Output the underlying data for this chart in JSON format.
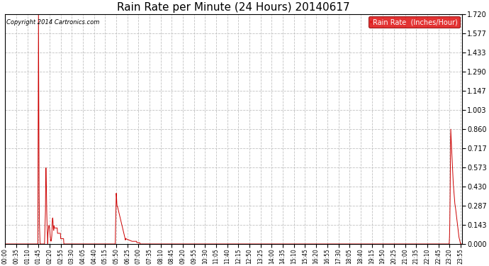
{
  "title": "Rain Rate per Minute (24 Hours) 20140617",
  "ylabel": "Rain Rate  (Inches/Hour)",
  "copyright": "Copyright 2014 Cartronics.com",
  "ylim": [
    0.0,
    1.72
  ],
  "yticks": [
    0.0,
    0.143,
    0.287,
    0.43,
    0.573,
    0.717,
    0.86,
    1.003,
    1.147,
    1.29,
    1.433,
    1.577,
    1.72
  ],
  "line_color": "#cc0000",
  "bg_color": "#ffffff",
  "plot_bg": "#f5f5f5",
  "grid_color": "#bbbbbb",
  "title_fontsize": 11,
  "legend_bg": "#dd0000",
  "legend_text_color": "#ffffff",
  "xtick_labels": [
    "00:00",
    "00:35",
    "01:10",
    "01:45",
    "02:20",
    "02:55",
    "03:30",
    "04:05",
    "04:40",
    "05:15",
    "05:50",
    "06:25",
    "07:00",
    "07:35",
    "08:10",
    "08:45",
    "09:20",
    "09:55",
    "10:30",
    "11:05",
    "11:40",
    "12:15",
    "12:50",
    "13:25",
    "14:00",
    "14:35",
    "15:10",
    "15:45",
    "16:20",
    "16:55",
    "17:30",
    "18:05",
    "18:40",
    "19:15",
    "19:50",
    "20:25",
    "21:00",
    "21:35",
    "22:10",
    "22:45",
    "23:20",
    "23:55"
  ]
}
